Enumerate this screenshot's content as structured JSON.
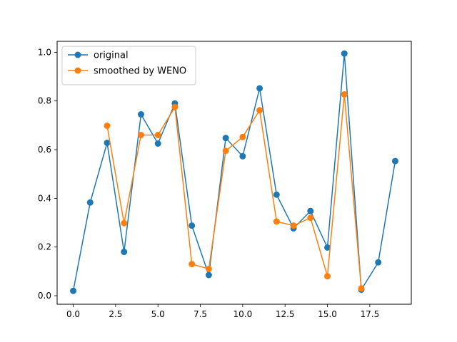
{
  "chart_data": {
    "type": "line",
    "title": "",
    "xlabel": "",
    "ylabel": "",
    "xlim": [
      -0.95,
      19.95
    ],
    "ylim": [
      -0.035,
      1.045
    ],
    "x_ticks": [
      0.0,
      2.5,
      5.0,
      7.5,
      10.0,
      12.5,
      15.0,
      17.5
    ],
    "x_tick_labels": [
      "0.0",
      "2.5",
      "5.0",
      "7.5",
      "10.0",
      "12.5",
      "15.0",
      "17.5"
    ],
    "y_ticks": [
      0.0,
      0.2,
      0.4,
      0.6,
      0.8,
      1.0
    ],
    "y_tick_labels": [
      "0.0",
      "0.2",
      "0.4",
      "0.6",
      "0.8",
      "1.0"
    ],
    "grid": false,
    "legend_position": "upper-left",
    "series": [
      {
        "name": "original",
        "color": "#1f77b4",
        "marker": "circle",
        "x": [
          0,
          1,
          2,
          3,
          4,
          5,
          6,
          7,
          8,
          9,
          10,
          11,
          12,
          13,
          14,
          15,
          16,
          17,
          18,
          19
        ],
        "y": [
          0.02,
          0.383,
          0.628,
          0.18,
          0.745,
          0.625,
          0.79,
          0.288,
          0.085,
          0.648,
          0.573,
          0.852,
          0.415,
          0.277,
          0.348,
          0.198,
          0.995,
          0.025,
          0.137,
          0.553
        ]
      },
      {
        "name": "smoothed by WENO",
        "color": "#ff7f0e",
        "marker": "circle",
        "x": [
          2,
          3,
          4,
          5,
          6,
          7,
          8,
          9,
          10,
          11,
          12,
          13,
          14,
          15,
          16,
          17
        ],
        "y": [
          0.698,
          0.298,
          0.66,
          0.66,
          0.775,
          0.13,
          0.11,
          0.595,
          0.652,
          0.762,
          0.305,
          0.288,
          0.32,
          0.08,
          0.827,
          0.03
        ]
      }
    ]
  }
}
